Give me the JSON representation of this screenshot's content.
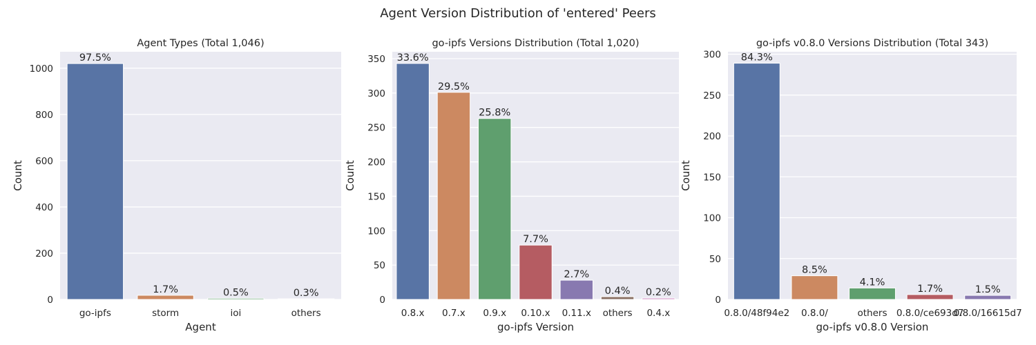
{
  "figure": {
    "suptitle": "Agent Version Distribution of 'entered' Peers"
  },
  "chart_data": [
    {
      "type": "bar",
      "title": "Agent Types (Total 1,046)",
      "xlabel": "Agent",
      "ylabel": "Count",
      "categories": [
        "go-ipfs",
        "storm",
        "ioi",
        "others"
      ],
      "values": [
        1020,
        18,
        5,
        3
      ],
      "labels": [
        "97.5%",
        "1.7%",
        "0.5%",
        "0.3%"
      ],
      "ylim": [
        0,
        1071
      ],
      "yticks": [
        0,
        200,
        400,
        600,
        800,
        1000
      ],
      "grid": true,
      "colors": [
        "#5874a5",
        "#cc8961",
        "#5f9f6e",
        "#b55c62"
      ]
    },
    {
      "type": "bar",
      "title": "go-ipfs Versions Distribution (Total 1,020)",
      "xlabel": "go-ipfs Version",
      "ylabel": "Count",
      "categories": [
        "0.8.x",
        "0.7.x",
        "0.9.x",
        "0.10.x",
        "0.11.x",
        "others",
        "0.4.x"
      ],
      "values": [
        343,
        301,
        263,
        79,
        28,
        4,
        2
      ],
      "labels": [
        "33.6%",
        "29.5%",
        "25.8%",
        "7.7%",
        "2.7%",
        "0.4%",
        "0.2%"
      ],
      "ylim": [
        0,
        360
      ],
      "yticks": [
        0,
        50,
        100,
        150,
        200,
        250,
        300,
        350
      ],
      "grid": true,
      "colors": [
        "#5874a5",
        "#cc8961",
        "#5f9f6e",
        "#b55c62",
        "#8879b0",
        "#8b7164",
        "#d08bc3"
      ]
    },
    {
      "type": "bar",
      "title": "go-ipfs v0.8.0 Versions Distribution (Total 343)",
      "xlabel": "go-ipfs v0.8.0 Version",
      "ylabel": "Count",
      "categories": [
        "0.8.0/48f94e2",
        "0.8.0/",
        "others",
        "0.8.0/ce693d7",
        "0.8.0/16615d7"
      ],
      "values": [
        289,
        29,
        14,
        6,
        5
      ],
      "labels": [
        "84.3%",
        "8.5%",
        "4.1%",
        "1.7%",
        "1.5%"
      ],
      "ylim": [
        0,
        303
      ],
      "yticks": [
        0,
        50,
        100,
        150,
        200,
        250,
        300
      ],
      "grid": true,
      "colors": [
        "#5874a5",
        "#cc8961",
        "#5f9f6e",
        "#b55c62",
        "#8879b0"
      ]
    }
  ]
}
